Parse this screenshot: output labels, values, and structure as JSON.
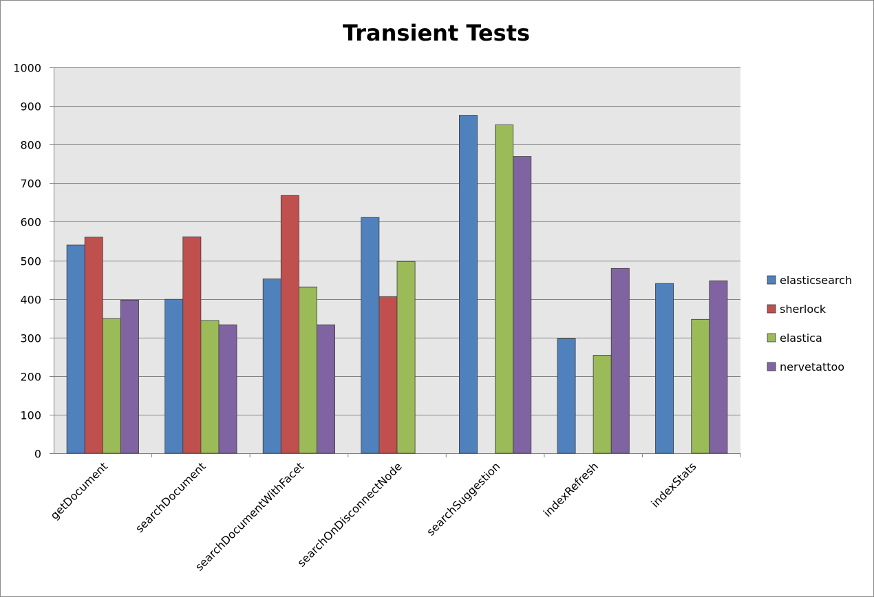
{
  "chart_data": {
    "type": "bar",
    "title": "Transient Tests",
    "xlabel": "",
    "ylabel": "",
    "ylim": [
      0,
      1000
    ],
    "yticks": [
      0,
      100,
      200,
      300,
      400,
      500,
      600,
      700,
      800,
      900,
      1000
    ],
    "grid": true,
    "legend_position": "right",
    "categories": [
      "getDocument",
      "searchDocument",
      "searchDocumentWithFacet",
      "searchOnDisconnectNode",
      "searchSuggestion",
      "indexRefresh",
      "indexStats"
    ],
    "series": [
      {
        "name": "elasticsearch",
        "color": "#4f81bd",
        "values": [
          540,
          399,
          452,
          611,
          876,
          297,
          440
        ]
      },
      {
        "name": "sherlock",
        "color": "#c0504d",
        "values": [
          560,
          561,
          668,
          406,
          null,
          null,
          null
        ]
      },
      {
        "name": "elastica",
        "color": "#9bbb59",
        "values": [
          349,
          344,
          431,
          497,
          851,
          254,
          347
        ]
      },
      {
        "name": "nervetattoo",
        "color": "#8064a2",
        "values": [
          397,
          333,
          333,
          null,
          769,
          479,
          447
        ]
      }
    ],
    "plot_background": "#e6e6e6",
    "gridline_color": "#808080"
  }
}
